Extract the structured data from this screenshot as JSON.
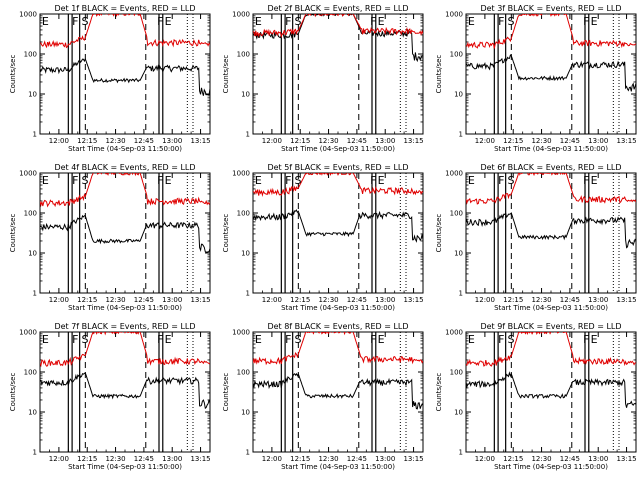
{
  "figure": {
    "xlabel": "Start Time (04-Sep-03 11:50:00)",
    "ylabel": "Counts/sec",
    "xtick_labels": [
      "12:00",
      "12:15",
      "12:30",
      "12:45",
      "13:00",
      "13:15"
    ],
    "ytick_labels": [
      "1",
      "10",
      "100",
      "1000"
    ],
    "series_colors": {
      "events": "#000000",
      "lld": "#e00000"
    }
  },
  "chart_data": [
    {
      "type": "line",
      "title": "Det 1f BLACK = Events, RED = LLD",
      "xlabel": "Start Time (04-Sep-03 11:50:00)",
      "ylabel": "Counts/sec",
      "x_unit": "minutes after 11:50",
      "xlim": [
        0,
        90
      ],
      "ylim": [
        1,
        1000
      ],
      "yscale": "log",
      "series": [
        {
          "name": "Events",
          "color": "#000000",
          "base": 40,
          "attenuator_level": 22,
          "spike_level": 75
        },
        {
          "name": "LLD",
          "color": "#e00000",
          "base": 175,
          "attenuator_level": 1000,
          "spike_level": 260
        }
      ],
      "attenuator_window": [
        28,
        53
      ],
      "solid_lines": [
        15,
        17,
        21,
        63,
        65
      ],
      "dashed_lines": [
        24,
        56
      ],
      "dotted_lines": [
        78,
        81
      ],
      "annotations": [
        {
          "label": "E",
          "x": 1
        },
        {
          "label": "F",
          "x": 17
        },
        {
          "label": "S",
          "x": 22
        },
        {
          "label": "F",
          "x": 62
        },
        {
          "label": "E",
          "x": 66
        }
      ]
    },
    {
      "type": "line",
      "title": "Det 2f BLACK = Events, RED = LLD",
      "xlabel": "Start Time (04-Sep-03 11:50:00)",
      "ylabel": "Counts/sec",
      "x_unit": "minutes after 11:50",
      "xlim": [
        0,
        90
      ],
      "ylim": [
        1,
        1000
      ],
      "yscale": "log",
      "series": [
        {
          "name": "Events",
          "color": "#000000",
          "base": 300,
          "attenuator_level": 1000,
          "spike_level": 320
        },
        {
          "name": "LLD",
          "color": "#e00000",
          "base": 340,
          "attenuator_level": 1000,
          "spike_level": 380
        }
      ],
      "attenuator_window": [
        28,
        53
      ],
      "solid_lines": [
        15,
        17,
        21,
        63,
        65
      ],
      "dashed_lines": [
        24,
        56
      ],
      "dotted_lines": [
        78,
        81
      ],
      "annotations": [
        {
          "label": "E",
          "x": 1
        },
        {
          "label": "F",
          "x": 17
        },
        {
          "label": "S",
          "x": 22
        },
        {
          "label": "F",
          "x": 62
        },
        {
          "label": "E",
          "x": 66
        }
      ]
    },
    {
      "type": "line",
      "title": "Det 3f BLACK = Events, RED = LLD",
      "xlabel": "Start Time (04-Sep-03 11:50:00)",
      "ylabel": "Counts/sec",
      "x_unit": "minutes after 11:50",
      "xlim": [
        0,
        90
      ],
      "ylim": [
        1,
        1000
      ],
      "yscale": "log",
      "series": [
        {
          "name": "Events",
          "color": "#000000",
          "base": 50,
          "attenuator_level": 25,
          "spike_level": 90
        },
        {
          "name": "LLD",
          "color": "#e00000",
          "base": 170,
          "attenuator_level": 1000,
          "spike_level": 250
        }
      ],
      "attenuator_window": [
        28,
        53
      ],
      "solid_lines": [
        15,
        17,
        21,
        63,
        65
      ],
      "dashed_lines": [
        24,
        56
      ],
      "dotted_lines": [
        78,
        81
      ],
      "annotations": [
        {
          "label": "E",
          "x": 1
        },
        {
          "label": "F",
          "x": 17
        },
        {
          "label": "S",
          "x": 22
        },
        {
          "label": "F",
          "x": 62
        },
        {
          "label": "E",
          "x": 66
        }
      ]
    },
    {
      "type": "line",
      "title": "Det 4f BLACK = Events, RED = LLD",
      "xlabel": "Start Time (04-Sep-03 11:50:00)",
      "ylabel": "Counts/sec",
      "x_unit": "minutes after 11:50",
      "xlim": [
        0,
        90
      ],
      "ylim": [
        1,
        1000
      ],
      "yscale": "log",
      "series": [
        {
          "name": "Events",
          "color": "#000000",
          "base": 45,
          "attenuator_level": 20,
          "spike_level": 85
        },
        {
          "name": "LLD",
          "color": "#e00000",
          "base": 180,
          "attenuator_level": 1000,
          "spike_level": 260
        }
      ],
      "attenuator_window": [
        28,
        53
      ],
      "solid_lines": [
        15,
        17,
        21,
        63,
        65
      ],
      "dashed_lines": [
        24,
        56
      ],
      "dotted_lines": [
        78,
        81
      ],
      "annotations": [
        {
          "label": "E",
          "x": 1
        },
        {
          "label": "F",
          "x": 17
        },
        {
          "label": "S",
          "x": 22
        },
        {
          "label": "F",
          "x": 62
        },
        {
          "label": "E",
          "x": 66
        }
      ]
    },
    {
      "type": "line",
      "title": "Det 5f BLACK = Events, RED = LLD",
      "xlabel": "Start Time (04-Sep-03 11:50:00)",
      "ylabel": "Counts/sec",
      "x_unit": "minutes after 11:50",
      "xlim": [
        0,
        90
      ],
      "ylim": [
        1,
        1000
      ],
      "yscale": "log",
      "series": [
        {
          "name": "Events",
          "color": "#000000",
          "base": 80,
          "attenuator_level": 30,
          "spike_level": 110
        },
        {
          "name": "LLD",
          "color": "#e00000",
          "base": 330,
          "attenuator_level": 1000,
          "spike_level": 420
        }
      ],
      "attenuator_window": [
        28,
        53
      ],
      "solid_lines": [
        15,
        17,
        21,
        63,
        65
      ],
      "dashed_lines": [
        24,
        56
      ],
      "dotted_lines": [
        78,
        81
      ],
      "annotations": [
        {
          "label": "E",
          "x": 1
        },
        {
          "label": "F",
          "x": 17
        },
        {
          "label": "S",
          "x": 22
        },
        {
          "label": "F",
          "x": 62
        },
        {
          "label": "E",
          "x": 66
        }
      ]
    },
    {
      "type": "line",
      "title": "Det 6f BLACK = Events, RED = LLD",
      "xlabel": "Start Time (04-Sep-03 11:50:00)",
      "ylabel": "Counts/sec",
      "x_unit": "minutes after 11:50",
      "xlim": [
        0,
        90
      ],
      "ylim": [
        1,
        1000
      ],
      "yscale": "log",
      "series": [
        {
          "name": "Events",
          "color": "#000000",
          "base": 60,
          "attenuator_level": 25,
          "spike_level": 100
        },
        {
          "name": "LLD",
          "color": "#e00000",
          "base": 200,
          "attenuator_level": 1000,
          "spike_level": 300
        }
      ],
      "attenuator_window": [
        28,
        53
      ],
      "solid_lines": [
        15,
        17,
        21,
        63,
        65
      ],
      "dashed_lines": [
        24,
        56
      ],
      "dotted_lines": [
        78,
        81
      ],
      "annotations": [
        {
          "label": "E",
          "x": 1
        },
        {
          "label": "F",
          "x": 17
        },
        {
          "label": "S",
          "x": 22
        },
        {
          "label": "F",
          "x": 62
        },
        {
          "label": "E",
          "x": 66
        }
      ]
    },
    {
      "type": "line",
      "title": "Det 7f BLACK = Events, RED = LLD",
      "xlabel": "Start Time (04-Sep-03 11:50:00)",
      "ylabel": "Counts/sec",
      "x_unit": "minutes after 11:50",
      "xlim": [
        0,
        90
      ],
      "ylim": [
        1,
        1000
      ],
      "yscale": "log",
      "series": [
        {
          "name": "Events",
          "color": "#000000",
          "base": 55,
          "attenuator_level": 25,
          "spike_level": 95
        },
        {
          "name": "LLD",
          "color": "#e00000",
          "base": 170,
          "attenuator_level": 1000,
          "spike_level": 260
        }
      ],
      "attenuator_window": [
        28,
        53
      ],
      "solid_lines": [
        15,
        17,
        21,
        63,
        65
      ],
      "dashed_lines": [
        24,
        56
      ],
      "dotted_lines": [
        78,
        81
      ],
      "annotations": [
        {
          "label": "E",
          "x": 1
        },
        {
          "label": "F",
          "x": 17
        },
        {
          "label": "S",
          "x": 22
        },
        {
          "label": "F",
          "x": 62
        },
        {
          "label": "E",
          "x": 66
        }
      ]
    },
    {
      "type": "line",
      "title": "Det 8f BLACK = Events, RED = LLD",
      "xlabel": "Start Time (04-Sep-03 11:50:00)",
      "ylabel": "Counts/sec",
      "x_unit": "minutes after 11:50",
      "xlim": [
        0,
        90
      ],
      "ylim": [
        1,
        1000
      ],
      "yscale": "log",
      "series": [
        {
          "name": "Events",
          "color": "#000000",
          "base": 50,
          "attenuator_level": 25,
          "spike_level": 90
        },
        {
          "name": "LLD",
          "color": "#e00000",
          "base": 190,
          "attenuator_level": 1000,
          "spike_level": 280
        }
      ],
      "attenuator_window": [
        28,
        53
      ],
      "solid_lines": [
        15,
        17,
        21,
        63,
        65
      ],
      "dashed_lines": [
        24,
        56
      ],
      "dotted_lines": [
        78,
        81
      ],
      "annotations": [
        {
          "label": "E",
          "x": 1
        },
        {
          "label": "F",
          "x": 17
        },
        {
          "label": "S",
          "x": 22
        },
        {
          "label": "F",
          "x": 62
        },
        {
          "label": "E",
          "x": 66
        }
      ]
    },
    {
      "type": "line",
      "title": "Det 9f BLACK = Events, RED = LLD",
      "xlabel": "Start Time (04-Sep-03 11:50:00)",
      "ylabel": "Counts/sec",
      "x_unit": "minutes after 11:50",
      "xlim": [
        0,
        90
      ],
      "ylim": [
        1,
        1000
      ],
      "yscale": "log",
      "series": [
        {
          "name": "Events",
          "color": "#000000",
          "base": 50,
          "attenuator_level": 25,
          "spike_level": 90
        },
        {
          "name": "LLD",
          "color": "#e00000",
          "base": 170,
          "attenuator_level": 1000,
          "spike_level": 250
        }
      ],
      "attenuator_window": [
        28,
        53
      ],
      "solid_lines": [
        15,
        17,
        21,
        63,
        65
      ],
      "dashed_lines": [
        24,
        56
      ],
      "dotted_lines": [
        78,
        81
      ],
      "annotations": [
        {
          "label": "E",
          "x": 1
        },
        {
          "label": "F",
          "x": 17
        },
        {
          "label": "S",
          "x": 22
        },
        {
          "label": "F",
          "x": 62
        },
        {
          "label": "E",
          "x": 66
        }
      ]
    }
  ]
}
